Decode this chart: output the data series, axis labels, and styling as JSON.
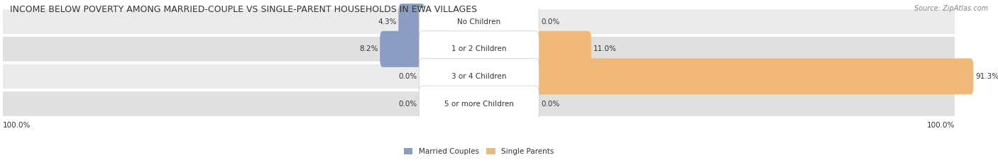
{
  "title": "INCOME BELOW POVERTY AMONG MARRIED-COUPLE VS SINGLE-PARENT HOUSEHOLDS IN EWA VILLAGES",
  "source": "Source: ZipAtlas.com",
  "categories": [
    "No Children",
    "1 or 2 Children",
    "3 or 4 Children",
    "5 or more Children"
  ],
  "married_values": [
    4.3,
    8.2,
    0.0,
    0.0
  ],
  "single_values": [
    0.0,
    11.0,
    91.3,
    0.0
  ],
  "married_color": "#8b9dc3",
  "single_color": "#f0b97a",
  "bar_bg_color": "#e8e8e8",
  "row_bg_color": "#f0f0f0",
  "row_bg_alt": "#e0e0e0",
  "max_value": 100.0,
  "left_label": "100.0%",
  "right_label": "100.0%",
  "title_fontsize": 9,
  "label_fontsize": 7.5,
  "category_fontsize": 7.5,
  "source_fontsize": 7
}
